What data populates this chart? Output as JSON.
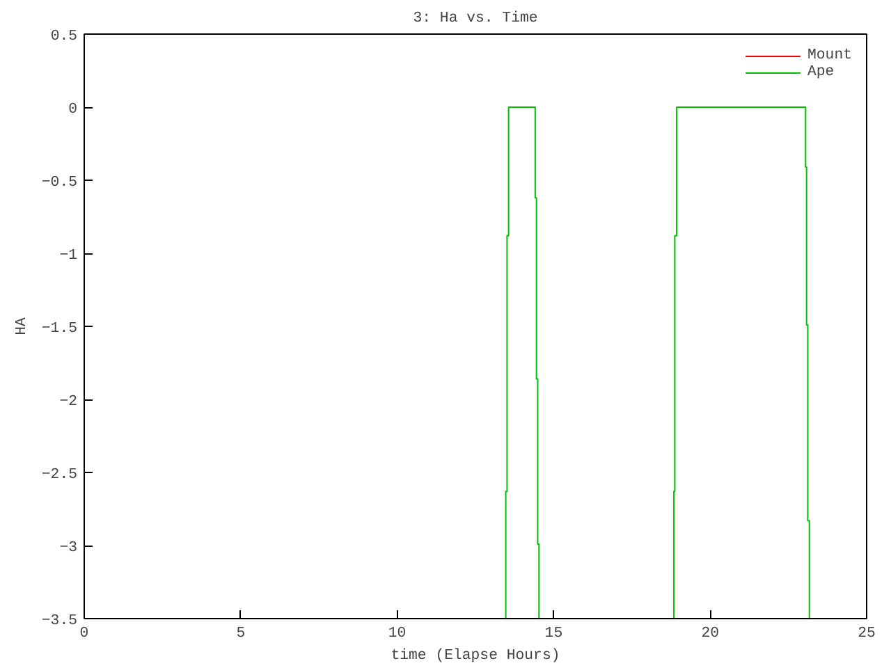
{
  "chart_data": {
    "type": "line",
    "title": "3: Ha vs. Time",
    "xlabel": "time (Elapse Hours)",
    "ylabel": "HA",
    "xlim": [
      0,
      25
    ],
    "xticks": [
      0,
      5,
      10,
      15,
      20,
      25
    ],
    "ylim": [
      -3.5,
      0.5
    ],
    "yticks": [
      0.5,
      0,
      -0.5,
      -1,
      -1.5,
      -2,
      -2.5,
      -3,
      -3.5
    ],
    "grid": false,
    "legend": "top right",
    "marker": "none",
    "line_style": "solid",
    "series": [
      {
        "name": "Mount",
        "color": "#ff0000"
      },
      {
        "name": "Ape",
        "color": "#00c000",
        "x": [
          13.47,
          13.47,
          13.51,
          13.51,
          13.56,
          13.56,
          14.41,
          14.41,
          14.45,
          14.45,
          14.49,
          14.49,
          14.53,
          14.53,
          16,
          18.84,
          18.84,
          18.87,
          18.87,
          18.93,
          18.93,
          23.05,
          23.05,
          23.08,
          23.08,
          23.12,
          23.12,
          23.17,
          23.17
        ],
        "values": [
          -3.5,
          -2.63,
          -2.63,
          -0.88,
          -0.88,
          0,
          0,
          -0.62,
          -0.62,
          -1.86,
          -1.86,
          -2.99,
          -2.99,
          -3.5,
          null,
          -3.5,
          -2.63,
          -2.63,
          -0.88,
          -0.88,
          0,
          0,
          -0.41,
          -0.41,
          -1.49,
          -1.49,
          -2.83,
          -2.83,
          -3.5
        ]
      }
    ]
  }
}
